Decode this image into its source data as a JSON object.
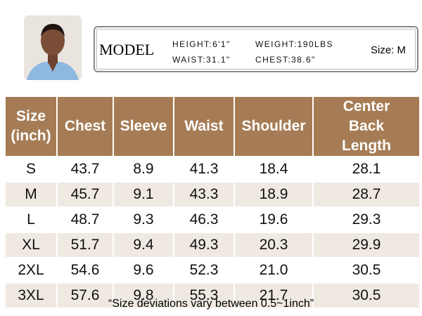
{
  "model": {
    "label": "MODEL",
    "height": "HEIGHT:6'1\"",
    "weight": "WEIGHT:190LBS",
    "waist": "WAIST:31.1\"",
    "chest": "CHEST:38.6\"",
    "size": "Size:  M"
  },
  "table": {
    "header": [
      "Size (inch)",
      "Chest",
      "Sleeve",
      "Waist",
      "Shoulder",
      "Center Back Length"
    ],
    "rows": [
      [
        "S",
        "43.7",
        "8.9",
        "41.3",
        "18.4",
        "28.1"
      ],
      [
        "M",
        "45.7",
        "9.1",
        "43.3",
        "18.9",
        "28.7"
      ],
      [
        "L",
        "48.7",
        "9.3",
        "46.3",
        "19.6",
        "29.3"
      ],
      [
        "XL",
        "51.7",
        "9.4",
        "49.3",
        "20.3",
        "29.9"
      ],
      [
        "2XL",
        "54.6",
        "9.6",
        "52.3",
        "21.0",
        "30.5"
      ],
      [
        "3XL",
        "57.6",
        "9.8",
        "55.3",
        "21.7",
        "30.5"
      ]
    ]
  },
  "note": "“Size deviations vary between 0.5~1inch”"
}
